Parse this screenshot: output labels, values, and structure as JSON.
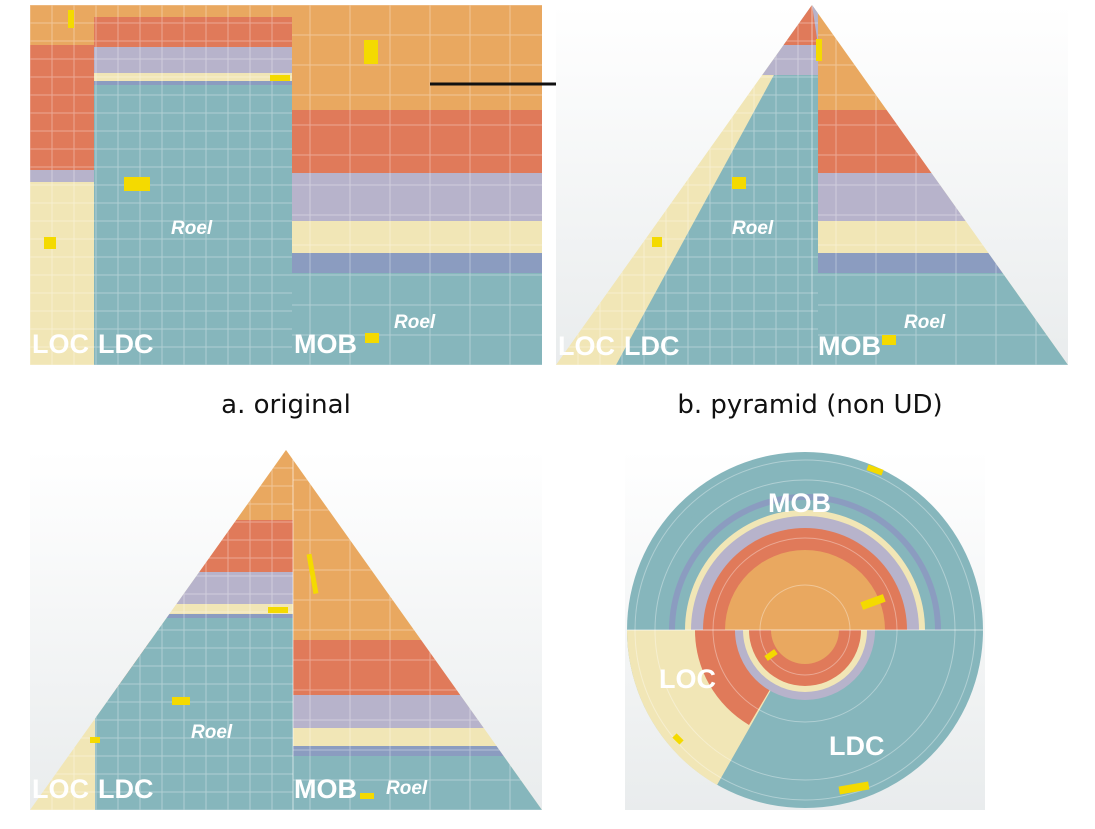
{
  "panels": {
    "a": {
      "caption": "a. original",
      "labels": {
        "loc": "LOC",
        "ldc": "LDC",
        "mob": "MOB",
        "roel_1": "Roel",
        "roel_2": "Roel"
      }
    },
    "b": {
      "caption": "b. pyramid (non UD)",
      "labels": {
        "loc": "LOC",
        "ldc": "LDC",
        "mob": "MOB",
        "roel_1": "Roel",
        "roel_2": "Roel"
      }
    },
    "c": {
      "caption": "",
      "labels": {
        "loc": "LOC",
        "ldc": "LDC",
        "mob": "MOB",
        "roel_1": "Roel",
        "roel_2": "Roel"
      }
    },
    "d": {
      "caption": "",
      "labels": {
        "mob": "MOB",
        "loc": "LOC",
        "ldc": "LDC"
      }
    }
  },
  "colors": {
    "orange": "#e9a860",
    "red": "#e07a5a",
    "lavender": "#b7b3cb",
    "cream": "#f1e6b6",
    "teal": "#86b6bc",
    "blue": "#8b9cc0",
    "yellow": "#f4da00"
  }
}
